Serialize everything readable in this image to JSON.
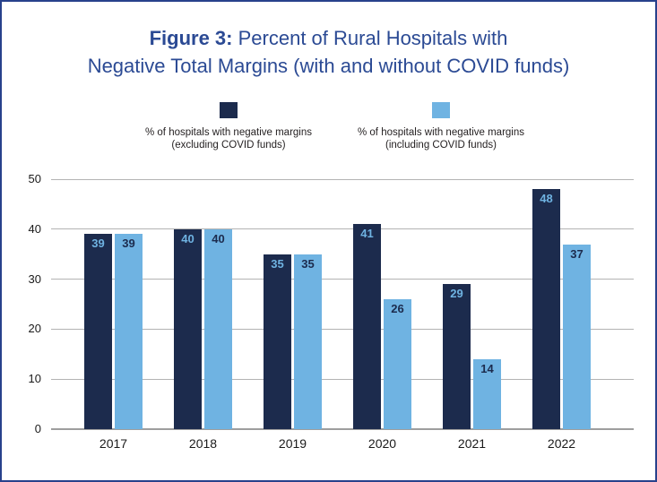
{
  "title": {
    "prefix": "Figure 3:",
    "line1_rest": " Percent of Rural Hospitals with",
    "line2": "Negative Total Margins (with and without COVID funds)"
  },
  "legend": {
    "items": [
      {
        "line1": "% of hospitals with negative margins",
        "line2": "(excluding COVID funds)",
        "color": "#1C2B4D"
      },
      {
        "line1": "% of hospitals with negative margins",
        "line2": "(including COVID funds)",
        "color": "#6FB3E2"
      }
    ]
  },
  "chart_data": {
    "type": "bar",
    "title": "Figure 3: Percent of Rural Hospitals with Negative Total Margins (with and without COVID funds)",
    "categories": [
      "2017",
      "2018",
      "2019",
      "2020",
      "2021",
      "2022"
    ],
    "series": [
      {
        "name": "% of hospitals with negative margins (excluding COVID funds)",
        "values": [
          39,
          40,
          35,
          41,
          29,
          48
        ],
        "color": "#1C2B4D",
        "label_color": "#6FB3E2"
      },
      {
        "name": "% of hospitals with negative margins (including COVID funds)",
        "values": [
          39,
          40,
          35,
          26,
          14,
          37
        ],
        "color": "#6FB3E2",
        "label_color": "#1C2B4D"
      }
    ],
    "ylim": [
      0,
      50
    ],
    "yticks": [
      0,
      10,
      20,
      30,
      40,
      50
    ],
    "grid": true,
    "legend_position": "top",
    "xlabel": "",
    "ylabel": ""
  },
  "colors": {
    "title": "#2B4A94",
    "border": "#28418C",
    "gridline": "#B3B3B3",
    "axis_line": "#9E9E9E",
    "legend_text": "#231F20",
    "axis_text": "#1A1A1A",
    "background": "#FFFFFF"
  }
}
